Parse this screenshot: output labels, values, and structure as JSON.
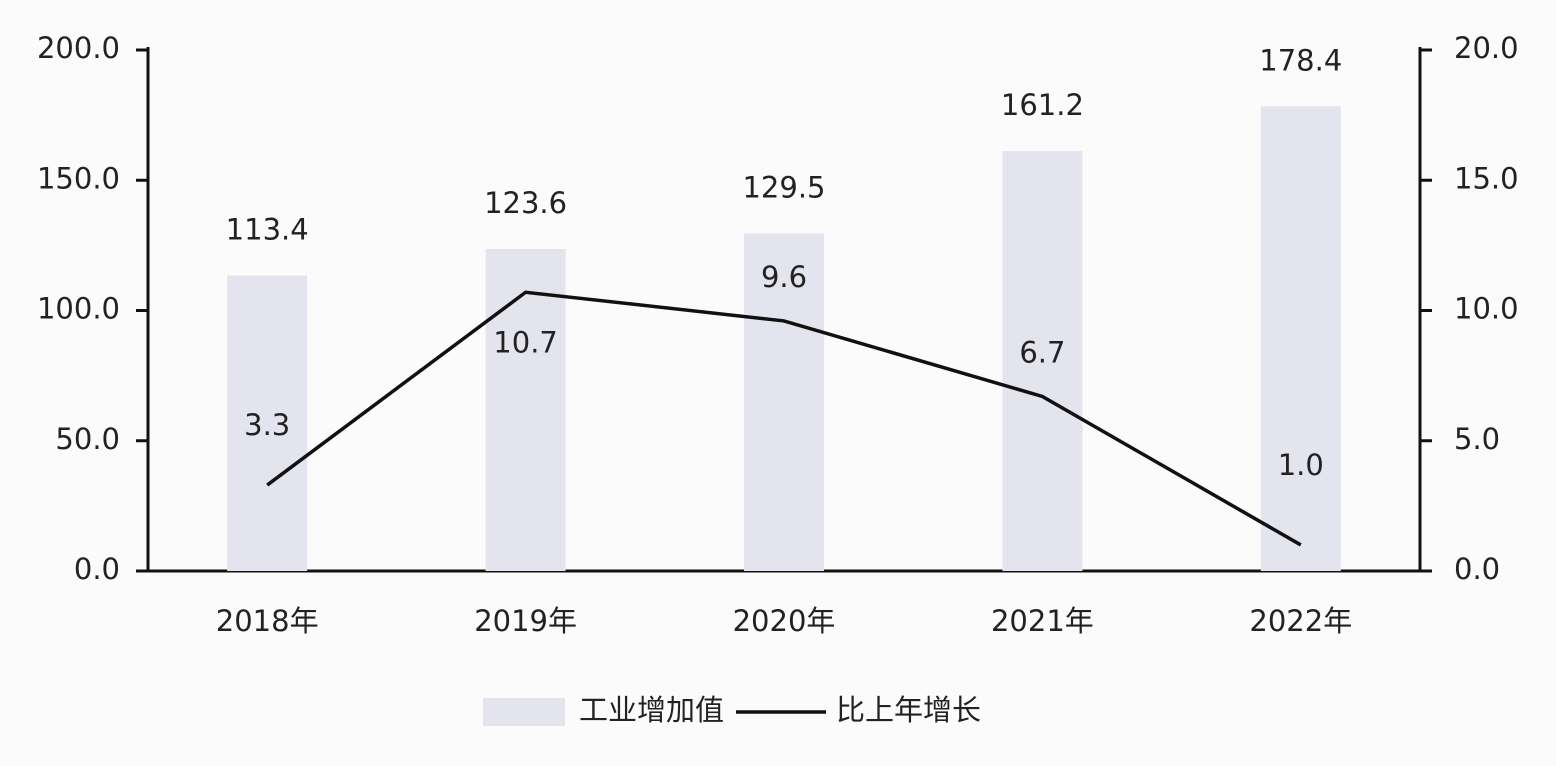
{
  "chart_data": {
    "type": "bar",
    "categories": [
      "2018年",
      "2019年",
      "2020年",
      "2021年",
      "2022年"
    ],
    "series": [
      {
        "name": "工业增加值",
        "type": "bar",
        "color": "#e4e4ef",
        "values": [
          113.4,
          123.6,
          129.5,
          161.2,
          178.4
        ]
      },
      {
        "name": "比上年增长",
        "type": "line",
        "axis": "y2",
        "color": "#111111",
        "values": [
          3.3,
          10.7,
          9.6,
          6.7,
          1.0
        ],
        "value_labels": [
          "3.3",
          "10.7",
          "9.6",
          "6.7",
          "1.0"
        ]
      }
    ],
    "ylim": [
      0,
      200
    ],
    "yticks": [
      {
        "value": 0,
        "label": "0.0"
      },
      {
        "value": 50,
        "label": "50.0"
      },
      {
        "value": 100,
        "label": "100.0"
      },
      {
        "value": 150,
        "label": "150.0"
      },
      {
        "value": 200,
        "label": "200.0"
      }
    ],
    "y2lim": [
      0,
      20
    ],
    "y2ticks": [
      {
        "value": 0,
        "label": "0.0"
      },
      {
        "value": 5,
        "label": "5.0"
      },
      {
        "value": 10,
        "label": "10.0"
      },
      {
        "value": 15,
        "label": "15.0"
      },
      {
        "value": 20,
        "label": "20.0"
      }
    ],
    "grid": false,
    "legend": "bottom"
  }
}
